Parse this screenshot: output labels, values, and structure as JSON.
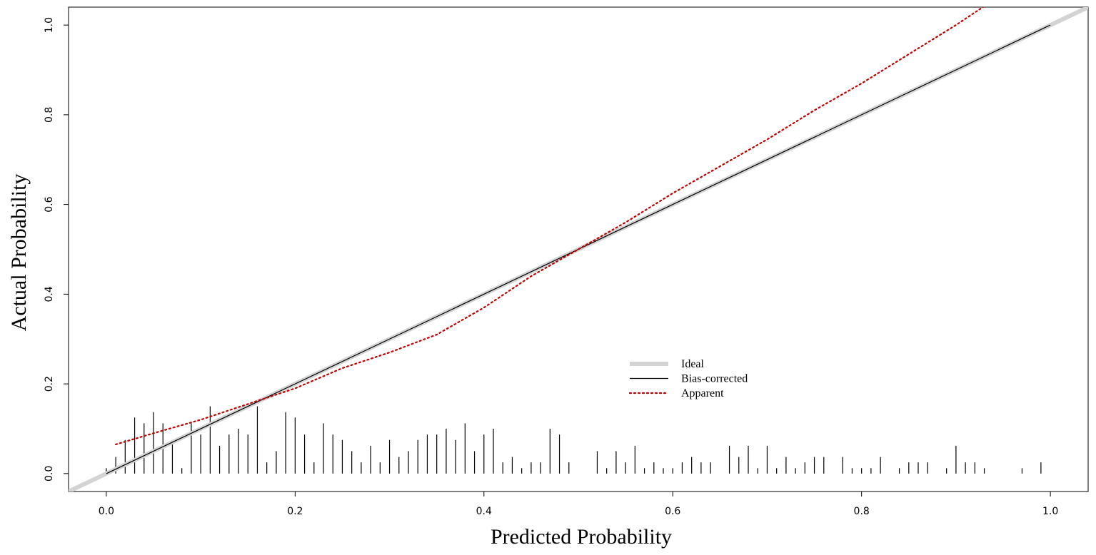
{
  "chart_data": {
    "type": "line",
    "xlabel": "Predicted Probability",
    "ylabel": "Actual Probability",
    "xlim": [
      -0.04,
      1.04
    ],
    "ylim": [
      -0.04,
      1.04
    ],
    "xticks": [
      0.0,
      0.2,
      0.4,
      0.6,
      0.8,
      1.0
    ],
    "yticks": [
      0.0,
      0.2,
      0.4,
      0.6,
      0.8,
      1.0
    ],
    "xtick_labels": [
      "0.0",
      "0.2",
      "0.4",
      "0.6",
      "0.8",
      "1.0"
    ],
    "ytick_labels": [
      "0.0",
      "0.2",
      "0.4",
      "0.6",
      "0.8",
      "1.0"
    ],
    "grid": false,
    "legend_position": "center-right",
    "series": [
      {
        "name": "Ideal",
        "color": "#d3d3d3",
        "style": "solid-thick",
        "x": [
          -0.04,
          1.04
        ],
        "y": [
          -0.04,
          1.04
        ]
      },
      {
        "name": "Bias-corrected",
        "color": "#000000",
        "style": "solid",
        "x": [
          0.0,
          1.0
        ],
        "y": [
          0.0,
          1.0
        ]
      },
      {
        "name": "Apparent",
        "color": "#c00000",
        "style": "dotted",
        "x": [
          0.01,
          0.05,
          0.1,
          0.15,
          0.2,
          0.25,
          0.3,
          0.35,
          0.4,
          0.45,
          0.5,
          0.55,
          0.6,
          0.65,
          0.7,
          0.75,
          0.8,
          0.85,
          0.9,
          0.95,
          0.97
        ],
        "y": [
          0.065,
          0.09,
          0.12,
          0.155,
          0.19,
          0.235,
          0.27,
          0.31,
          0.37,
          0.44,
          0.5,
          0.56,
          0.625,
          0.685,
          0.745,
          0.81,
          0.87,
          0.935,
          1.0,
          1.07,
          1.095
        ]
      }
    ],
    "rug": {
      "x": [
        0.0,
        0.01,
        0.02,
        0.03,
        0.04,
        0.05,
        0.06,
        0.07,
        0.08,
        0.09,
        0.1,
        0.11,
        0.12,
        0.13,
        0.14,
        0.15,
        0.16,
        0.17,
        0.18,
        0.19,
        0.2,
        0.21,
        0.22,
        0.23,
        0.24,
        0.25,
        0.26,
        0.27,
        0.28,
        0.29,
        0.3,
        0.31,
        0.32,
        0.33,
        0.34,
        0.35,
        0.36,
        0.37,
        0.38,
        0.39,
        0.4,
        0.41,
        0.42,
        0.43,
        0.44,
        0.45,
        0.46,
        0.47,
        0.48,
        0.49,
        0.52,
        0.53,
        0.54,
        0.55,
        0.56,
        0.57,
        0.58,
        0.59,
        0.6,
        0.61,
        0.62,
        0.63,
        0.64,
        0.66,
        0.67,
        0.68,
        0.69,
        0.7,
        0.71,
        0.72,
        0.73,
        0.74,
        0.75,
        0.76,
        0.78,
        0.79,
        0.8,
        0.81,
        0.82,
        0.84,
        0.85,
        0.86,
        0.87,
        0.89,
        0.9,
        0.91,
        0.92,
        0.93,
        0.97,
        0.99
      ],
      "heights": [
        0.012,
        0.037,
        0.075,
        0.125,
        0.112,
        0.137,
        0.112,
        0.075,
        0.012,
        0.112,
        0.087,
        0.15,
        0.062,
        0.087,
        0.1,
        0.087,
        0.15,
        0.025,
        0.05,
        0.137,
        0.125,
        0.087,
        0.025,
        0.112,
        0.087,
        0.075,
        0.05,
        0.025,
        0.062,
        0.025,
        0.075,
        0.037,
        0.05,
        0.075,
        0.087,
        0.087,
        0.1,
        0.075,
        0.112,
        0.05,
        0.087,
        0.1,
        0.025,
        0.037,
        0.012,
        0.025,
        0.025,
        0.1,
        0.087,
        0.025,
        0.05,
        0.012,
        0.05,
        0.025,
        0.062,
        0.012,
        0.025,
        0.012,
        0.012,
        0.025,
        0.037,
        0.025,
        0.025,
        0.062,
        0.037,
        0.062,
        0.012,
        0.062,
        0.012,
        0.037,
        0.012,
        0.025,
        0.037,
        0.037,
        0.037,
        0.012,
        0.012,
        0.012,
        0.037,
        0.012,
        0.025,
        0.025,
        0.025,
        0.012,
        0.062,
        0.025,
        0.025,
        0.012,
        0.012,
        0.025
      ]
    }
  }
}
